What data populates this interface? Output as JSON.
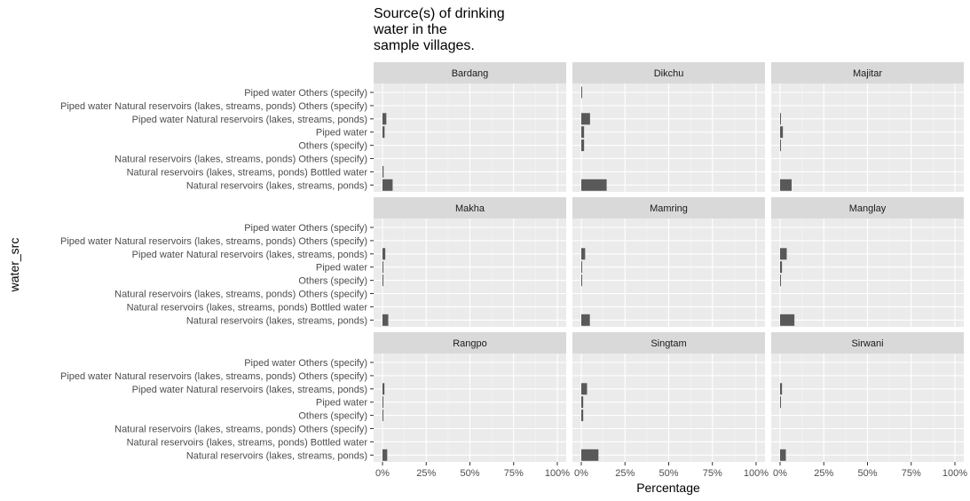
{
  "chart_data": {
    "type": "bar",
    "orientation": "horizontal",
    "facet": "wrap 3x3",
    "title": "Source(s) of drinking\nwater in the\nsample villages.",
    "xlabel": "Percentage",
    "ylabel": "water_src",
    "xlim": [
      0,
      100
    ],
    "x_ticks": [
      "0%",
      "25%",
      "50%",
      "75%",
      "100%"
    ],
    "categories": [
      "Piped water Others (specify)",
      "Piped water Natural reservoirs (lakes, streams, ponds) Others (specify)",
      "Piped water Natural reservoirs (lakes, streams, ponds)",
      "Piped water",
      "Others (specify)",
      "Natural reservoirs (lakes, streams, ponds) Others (specify)",
      "Natural reservoirs (lakes, streams, ponds) Bottled water",
      "Natural reservoirs (lakes, streams, ponds)"
    ],
    "bar_color": "#595959",
    "panel_background": "#ebebeb",
    "grid": true,
    "panels": [
      {
        "name": "Bardang",
        "values": [
          0,
          0,
          2.2,
          1.2,
          0,
          0,
          0.6,
          5.8
        ]
      },
      {
        "name": "Dikchu",
        "values": [
          0.5,
          0,
          5.0,
          1.6,
          1.6,
          0,
          0,
          14.5
        ]
      },
      {
        "name": "Majitar",
        "values": [
          0,
          0,
          0.5,
          1.6,
          0.5,
          0,
          0,
          6.6
        ]
      },
      {
        "name": "Makha",
        "values": [
          0,
          0,
          1.6,
          0.5,
          0.5,
          0,
          0,
          3.3
        ]
      },
      {
        "name": "Mamring",
        "values": [
          0,
          0,
          2.2,
          0.5,
          0.5,
          0,
          0,
          4.9
        ]
      },
      {
        "name": "Manglay",
        "values": [
          0,
          0,
          3.8,
          1.1,
          0.5,
          0,
          0,
          8.2
        ]
      },
      {
        "name": "Rangpo",
        "values": [
          0,
          0,
          1.1,
          0.5,
          0.5,
          0,
          0,
          2.7
        ]
      },
      {
        "name": "Singtam",
        "values": [
          0,
          0,
          3.3,
          1.1,
          1.1,
          0,
          0,
          9.8
        ]
      },
      {
        "name": "Sirwani",
        "values": [
          0,
          0,
          1.1,
          0.5,
          0,
          0,
          0,
          3.3
        ]
      }
    ]
  }
}
